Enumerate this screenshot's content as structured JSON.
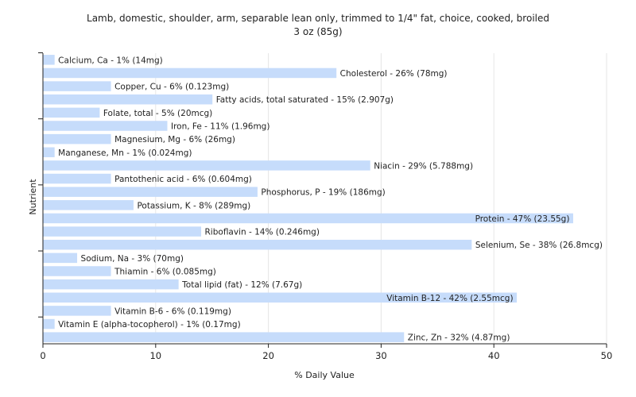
{
  "chart_data": {
    "type": "bar",
    "orientation": "horizontal",
    "title": "Lamb, domestic, shoulder, arm, separable lean only, trimmed to 1/4\" fat, choice, cooked, broiled",
    "subtitle": "3 oz (85g)",
    "xlabel": "% Daily Value",
    "ylabel": "Nutrient",
    "xlim": [
      0,
      50
    ],
    "xticks": [
      0,
      10,
      20,
      30,
      40,
      50
    ],
    "grid": true,
    "bar_color": "#c6dcfb",
    "categories": [
      "Calcium, Ca",
      "Cholesterol",
      "Copper, Cu",
      "Fatty acids, total saturated",
      "Folate, total",
      "Iron, Fe",
      "Magnesium, Mg",
      "Manganese, Mn",
      "Niacin",
      "Pantothenic acid",
      "Phosphorus, P",
      "Potassium, K",
      "Protein",
      "Riboflavin",
      "Selenium, Se",
      "Sodium, Na",
      "Thiamin",
      "Total lipid (fat)",
      "Vitamin B-12",
      "Vitamin B-6",
      "Vitamin E (alpha-tocopherol)",
      "Zinc, Zn"
    ],
    "values": [
      1,
      26,
      6,
      15,
      5,
      11,
      6,
      1,
      29,
      6,
      19,
      8,
      47,
      14,
      38,
      3,
      6,
      12,
      42,
      6,
      1,
      32
    ],
    "labels": [
      "Calcium, Ca - 1% (14mg)",
      "Cholesterol - 26% (78mg)",
      "Copper, Cu - 6% (0.123mg)",
      "Fatty acids, total saturated - 15% (2.907g)",
      "Folate, total - 5% (20mcg)",
      "Iron, Fe - 11% (1.96mg)",
      "Magnesium, Mg - 6% (26mg)",
      "Manganese, Mn - 1% (0.024mg)",
      "Niacin - 29% (5.788mg)",
      "Pantothenic acid - 6% (0.604mg)",
      "Phosphorus, P - 19% (186mg)",
      "Potassium, K - 8% (289mg)",
      "Protein - 47% (23.55g)",
      "Riboflavin - 14% (0.246mg)",
      "Selenium, Se - 38% (26.8mcg)",
      "Sodium, Na - 3% (70mg)",
      "Thiamin - 6% (0.085mg)",
      "Total lipid (fat) - 12% (7.67g)",
      "Vitamin B-12 - 42% (2.55mcg)",
      "Vitamin B-6 - 6% (0.119mg)",
      "Vitamin E (alpha-tocopherol) - 1% (0.17mg)",
      "Zinc, Zn - 32% (4.87mg)"
    ]
  }
}
